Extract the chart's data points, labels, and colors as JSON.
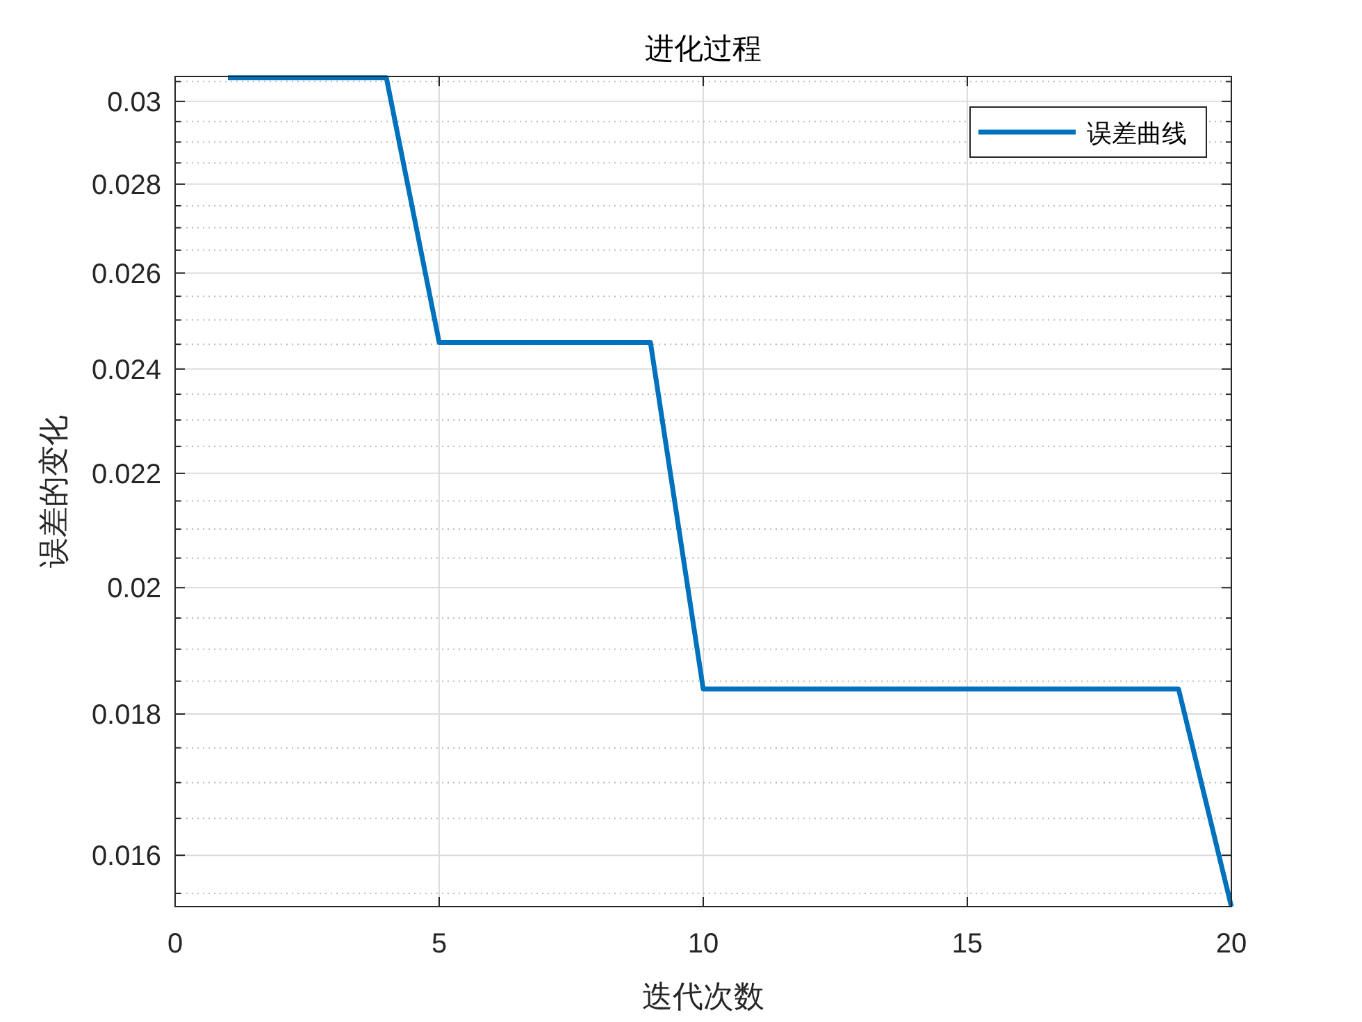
{
  "chart_data": {
    "type": "line",
    "title": "进化过程",
    "xlabel": "迭代次数",
    "ylabel": "误差的变化",
    "x": [
      1,
      2,
      3,
      4,
      5,
      6,
      7,
      8,
      9,
      10,
      11,
      12,
      13,
      14,
      15,
      16,
      17,
      18,
      19,
      20
    ],
    "series": [
      {
        "name": "误差曲线",
        "color": "#0072bd",
        "values": [
          0.0306,
          0.0306,
          0.0306,
          0.0306,
          0.02454,
          0.02454,
          0.02454,
          0.02454,
          0.02454,
          0.01838,
          0.01838,
          0.01838,
          0.01838,
          0.01838,
          0.01838,
          0.01838,
          0.01838,
          0.01838,
          0.01838,
          0.01533
        ]
      }
    ],
    "xlim": [
      0,
      20
    ],
    "xticks": [
      0,
      5,
      10,
      15,
      20
    ],
    "ylim": [
      0.01533,
      0.03063
    ],
    "log": "y",
    "yticks": [
      0.016,
      0.018,
      0.02,
      0.022,
      0.024,
      0.026,
      0.028,
      0.03,
      {
        "value": 0.0155,
        "label": null
      },
      {
        "value": 0.0165,
        "label": null
      },
      {
        "value": 0.017,
        "label": null
      },
      {
        "value": 0.0175,
        "label": null
      },
      {
        "value": 0.0185,
        "label": null
      },
      {
        "value": 0.019,
        "label": null
      },
      {
        "value": 0.0195,
        "label": null
      },
      {
        "value": 0.0205,
        "label": null
      },
      {
        "value": 0.021,
        "label": null
      },
      {
        "value": 0.0215,
        "label": null
      },
      {
        "value": 0.0225,
        "label": null
      },
      {
        "value": 0.023,
        "label": null
      },
      {
        "value": 0.0235,
        "label": null
      },
      {
        "value": 0.0245,
        "label": null
      },
      {
        "value": 0.025,
        "label": null
      },
      {
        "value": 0.0255,
        "label": null
      },
      {
        "value": 0.0265,
        "label": null
      },
      {
        "value": 0.027,
        "label": null
      },
      {
        "value": 0.0275,
        "label": null
      },
      {
        "value": 0.0285,
        "label": null
      },
      {
        "value": 0.029,
        "label": null
      },
      {
        "value": 0.0295,
        "label": null
      },
      {
        "value": 0.0305,
        "label": null
      }
    ],
    "grid": true,
    "legend": "top right",
    "line_style": "solid",
    "marker": "none"
  }
}
